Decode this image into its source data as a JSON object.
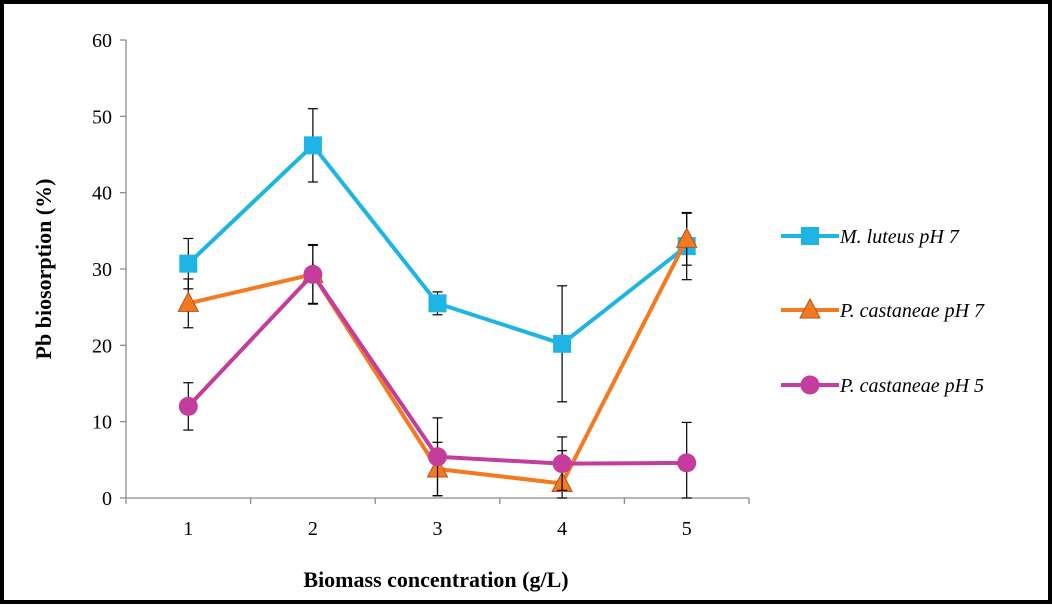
{
  "chart_data": {
    "type": "line",
    "title": "",
    "xlabel": "Biomass concentration (g/L)",
    "ylabel": "Pb  biosorption (%)",
    "x": [
      1,
      2,
      3,
      4,
      5
    ],
    "categories": [
      "1",
      "2",
      "3",
      "4",
      "5"
    ],
    "ylim": [
      0,
      60
    ],
    "yticks": [
      "0",
      "10",
      "20",
      "30",
      "40",
      "50",
      "60"
    ],
    "grid": false,
    "legend_position": "right",
    "series": [
      {
        "name": "M. luteus pH 7",
        "marker": "square",
        "color": "#1FB4E6",
        "values": [
          30.7,
          46.2,
          25.5,
          20.2,
          33.0
        ],
        "errors": [
          3.3,
          4.8,
          1.5,
          7.6,
          4.4
        ]
      },
      {
        "name": "P. castaneae pH 7",
        "marker": "triangle",
        "color": "#F47A20",
        "values": [
          25.5,
          29.3,
          3.8,
          1.9,
          33.9
        ],
        "errors": [
          3.2,
          3.8,
          3.5,
          4.3,
          3.4
        ]
      },
      {
        "name": "P. castaneae pH 5",
        "marker": "circle",
        "color": "#C43C9C",
        "values": [
          12.0,
          29.3,
          5.4,
          4.5,
          4.6
        ],
        "errors": [
          3.1,
          3.9,
          5.1,
          3.5,
          5.3
        ]
      }
    ]
  }
}
